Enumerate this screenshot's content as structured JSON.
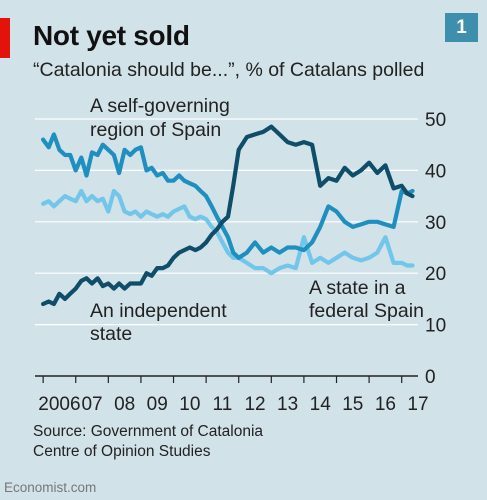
{
  "header": {
    "title": "Not yet sold",
    "badge": "1",
    "subtitle": "“Catalonia should be...”, % of Catalans polled"
  },
  "footer": {
    "source_line1": "Source: Government of Catalonia",
    "source_line2": "Centre of Opinion Studies",
    "brand": "Economist.com"
  },
  "colors": {
    "background": "#d2e2e9",
    "accent": "#e3120b",
    "badge": "#3e8fad",
    "self_governing": "#1f8fbf",
    "independent": "#0f4d68",
    "federal": "#72c6ea"
  },
  "chart_data": {
    "type": "line",
    "title": "Not yet sold",
    "subtitle": "“Catalonia should be...”, % of Catalans polled",
    "xlabel": "",
    "ylabel": "",
    "x_tick_labels": [
      "2006",
      "07",
      "08",
      "09",
      "10",
      "11",
      "12",
      "13",
      "14",
      "15",
      "16",
      "17"
    ],
    "xlim": [
      2005.75,
      2017.5
    ],
    "ylim": [
      0,
      50
    ],
    "y_ticks": [
      0,
      10,
      20,
      30,
      40,
      50
    ],
    "y_axis_side": "right",
    "grid": true,
    "series": [
      {
        "name": "A self-governing region of Spain",
        "color": "#1f8fbf",
        "x": [
          2006.0,
          2006.17,
          2006.33,
          2006.5,
          2006.67,
          2006.83,
          2007.0,
          2007.17,
          2007.33,
          2007.5,
          2007.67,
          2007.83,
          2008.0,
          2008.17,
          2008.33,
          2008.5,
          2008.67,
          2008.83,
          2009.0,
          2009.17,
          2009.33,
          2009.5,
          2009.67,
          2009.83,
          2010.0,
          2010.17,
          2010.33,
          2010.5,
          2010.67,
          2010.83,
          2011.0,
          2011.17,
          2011.33,
          2011.5,
          2011.67,
          2011.83,
          2012.0,
          2012.25,
          2012.5,
          2012.75,
          2013.0,
          2013.25,
          2013.5,
          2013.75,
          2014.0,
          2014.25,
          2014.5,
          2014.75,
          2015.0,
          2015.25,
          2015.5,
          2015.75,
          2016.0,
          2016.25,
          2016.5,
          2016.75,
          2017.0,
          2017.17,
          2017.33
        ],
        "values": [
          46,
          44.5,
          47,
          44,
          43,
          43,
          40,
          42.5,
          39,
          43.5,
          43,
          45,
          44,
          43,
          39.5,
          44,
          43,
          44,
          44.5,
          40,
          40.5,
          39,
          39.5,
          38,
          38,
          39,
          38,
          37.5,
          37,
          36,
          35,
          33,
          31,
          29,
          27,
          24,
          23,
          24,
          26,
          24,
          25,
          24,
          25,
          25,
          24.5,
          26,
          29,
          33,
          32,
          30,
          29,
          29.5,
          30,
          30,
          29.5,
          29,
          36,
          35.5,
          36
        ]
      },
      {
        "name": "An independent state",
        "color": "#0f4d68",
        "x": [
          2006.0,
          2006.17,
          2006.33,
          2006.5,
          2006.67,
          2006.83,
          2007.0,
          2007.17,
          2007.33,
          2007.5,
          2007.67,
          2007.83,
          2008.0,
          2008.17,
          2008.33,
          2008.5,
          2008.67,
          2008.83,
          2009.0,
          2009.17,
          2009.33,
          2009.5,
          2009.67,
          2009.83,
          2010.0,
          2010.17,
          2010.33,
          2010.5,
          2010.67,
          2010.83,
          2011.0,
          2011.17,
          2011.33,
          2011.5,
          2011.67,
          2011.83,
          2012.0,
          2012.25,
          2012.5,
          2012.75,
          2013.0,
          2013.25,
          2013.5,
          2013.75,
          2014.0,
          2014.25,
          2014.5,
          2014.75,
          2015.0,
          2015.25,
          2015.5,
          2015.75,
          2016.0,
          2016.25,
          2016.5,
          2016.75,
          2017.0,
          2017.17,
          2017.33
        ],
        "values": [
          14,
          14.5,
          14,
          16,
          15,
          16,
          17,
          18.5,
          19,
          18,
          19,
          17.5,
          18,
          17,
          18,
          17,
          18,
          18,
          18,
          20,
          19.5,
          21,
          21,
          21.5,
          23,
          24,
          24.5,
          25,
          24.5,
          25,
          26,
          27.5,
          28.5,
          30,
          31,
          37,
          44,
          46.5,
          47,
          47.5,
          48.5,
          47,
          45.5,
          45,
          45.5,
          45,
          37,
          38.5,
          38,
          40.5,
          39,
          40,
          41.5,
          39.5,
          41,
          36.5,
          37,
          35.5,
          35
        ]
      },
      {
        "name": "A state in a federal Spain",
        "color": "#72c6ea",
        "x": [
          2006.0,
          2006.17,
          2006.33,
          2006.5,
          2006.67,
          2006.83,
          2007.0,
          2007.17,
          2007.33,
          2007.5,
          2007.67,
          2007.83,
          2008.0,
          2008.17,
          2008.33,
          2008.5,
          2008.67,
          2008.83,
          2009.0,
          2009.17,
          2009.33,
          2009.5,
          2009.67,
          2009.83,
          2010.0,
          2010.17,
          2010.33,
          2010.5,
          2010.67,
          2010.83,
          2011.0,
          2011.17,
          2011.33,
          2011.5,
          2011.67,
          2011.83,
          2012.0,
          2012.25,
          2012.5,
          2012.75,
          2013.0,
          2013.25,
          2013.5,
          2013.75,
          2014.0,
          2014.25,
          2014.5,
          2014.75,
          2015.0,
          2015.25,
          2015.5,
          2015.75,
          2016.0,
          2016.25,
          2016.5,
          2016.75,
          2017.0,
          2017.17,
          2017.33
        ],
        "values": [
          33.5,
          34,
          33,
          34,
          35,
          34.5,
          34,
          36,
          34,
          35,
          34,
          34.5,
          32,
          36,
          35,
          32,
          31.5,
          32,
          31,
          32,
          31.5,
          31,
          31.5,
          31,
          32,
          32.5,
          33,
          31,
          30.5,
          31,
          30.5,
          29,
          28,
          26,
          24,
          23,
          23,
          22,
          21,
          21,
          20,
          21,
          21.5,
          21,
          27,
          22,
          23,
          22,
          23,
          24,
          23,
          22.5,
          23,
          24,
          27,
          22,
          22,
          21.5,
          21.5
        ]
      }
    ],
    "annotations": [
      {
        "text": "A self-governing",
        "series": "A self-governing region of Spain"
      },
      {
        "text": "region of Spain",
        "series": "A self-governing region of Spain"
      },
      {
        "text": "An independent",
        "series": "An independent state"
      },
      {
        "text": "state",
        "series": "An independent state"
      },
      {
        "text": "A state in a",
        "series": "A state in a federal Spain"
      },
      {
        "text": "federal Spain",
        "series": "A state in a federal Spain"
      }
    ]
  }
}
